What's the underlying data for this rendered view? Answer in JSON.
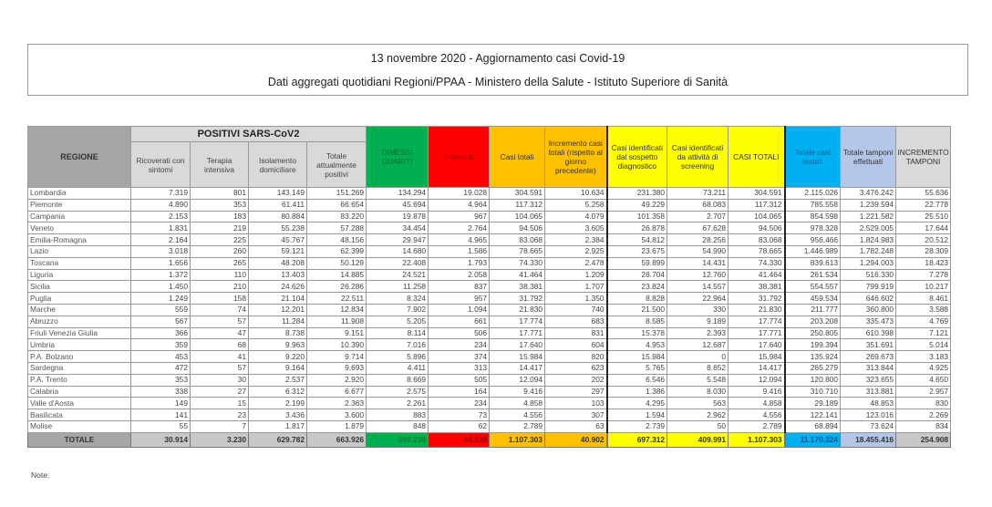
{
  "title": "13 novembre 2020 - Aggiornamento casi Covid-19",
  "subtitle": "Dati aggregati quotidiani Regioni/PPAA - Ministero della Salute - Istituto Superiore di Sanità",
  "headers": {
    "regione": "REGIONE",
    "positivi_group": "POSITIVI SARS-CoV2",
    "ricoverati": "Ricoverati con sintomi",
    "terapia": "Terapia intensiva",
    "isolamento": "Isolamento domiciliare",
    "totale_positivi": "Totale attualmente positivi",
    "dimessi": "DIMESSI GUARITI",
    "deceduti": "Deceduti",
    "casi_totali": "Casi totali",
    "incremento_casi": "Incremento casi totali (rispetto al giorno precedente)",
    "sospetto": "Casi identificati dal sospetto diagnostico",
    "screening": "Casi identificati da attività di screening",
    "casi_totali_caps": "CASI TOTALI",
    "testati": "Totale casi testati",
    "tamponi": "Totale tamponi effettuati",
    "incremento_tamponi": "INCREMENTO TAMPONI"
  },
  "rows": [
    [
      "Lombardia",
      "7.319",
      "801",
      "143.149",
      "151.269",
      "134.294",
      "19.028",
      "304.591",
      "10.634",
      "231.380",
      "73.211",
      "304.591",
      "2.115.026",
      "3.476.242",
      "55.636"
    ],
    [
      "Piemonte",
      "4.890",
      "353",
      "61.411",
      "66.654",
      "45.694",
      "4.964",
      "117.312",
      "5.258",
      "49.229",
      "68.083",
      "117.312",
      "785.558",
      "1.239.594",
      "22.778"
    ],
    [
      "Campania",
      "2.153",
      "183",
      "80.884",
      "83.220",
      "19.878",
      "967",
      "104.065",
      "4.079",
      "101.358",
      "2.707",
      "104.065",
      "854.598",
      "1.221.582",
      "25.510"
    ],
    [
      "Veneto",
      "1.831",
      "219",
      "55.238",
      "57.288",
      "34.454",
      "2.764",
      "94.506",
      "3.605",
      "26.878",
      "67.628",
      "94.506",
      "978.328",
      "2.529.005",
      "17.644"
    ],
    [
      "Emilia-Romagna",
      "2.164",
      "225",
      "45.767",
      "48.156",
      "29.947",
      "4.965",
      "83.068",
      "2.384",
      "54.812",
      "28.256",
      "83.068",
      "956.466",
      "1.824.983",
      "20.512"
    ],
    [
      "Lazio",
      "3.018",
      "260",
      "59.121",
      "62.399",
      "14.680",
      "1.586",
      "78.665",
      "2.925",
      "23.675",
      "54.990",
      "78.665",
      "1.446.989",
      "1.782.248",
      "28.309"
    ],
    [
      "Toscana",
      "1.656",
      "265",
      "48.208",
      "50.129",
      "22.408",
      "1.793",
      "74.330",
      "2.478",
      "59.899",
      "14.431",
      "74.330",
      "839.613",
      "1.294.003",
      "18.423"
    ],
    [
      "Liguria",
      "1.372",
      "110",
      "13.403",
      "14.885",
      "24.521",
      "2.058",
      "41.464",
      "1.209",
      "28.704",
      "12.760",
      "41.464",
      "261.534",
      "516.330",
      "7.278"
    ],
    [
      "Sicilia",
      "1.450",
      "210",
      "24.626",
      "26.286",
      "11.258",
      "837",
      "38.381",
      "1.707",
      "23.824",
      "14.557",
      "38.381",
      "554.557",
      "799.919",
      "10.217"
    ],
    [
      "Puglia",
      "1.249",
      "158",
      "21.104",
      "22.511",
      "8.324",
      "957",
      "31.792",
      "1.350",
      "8.828",
      "22.964",
      "31.792",
      "459.534",
      "646.602",
      "8.461"
    ],
    [
      "Marche",
      "559",
      "74",
      "12.201",
      "12.834",
      "7.902",
      "1.094",
      "21.830",
      "740",
      "21.500",
      "330",
      "21.830",
      "211.777",
      "360.800",
      "3.588"
    ],
    [
      "Abruzzo",
      "567",
      "57",
      "11.284",
      "11.908",
      "5.205",
      "661",
      "17.774",
      "683",
      "8.585",
      "9.189",
      "17.774",
      "203.208",
      "335.473",
      "4.769"
    ],
    [
      "Friuli Venezia Giulia",
      "366",
      "47",
      "8.738",
      "9.151",
      "8.114",
      "506",
      "17.771",
      "831",
      "15.378",
      "2.393",
      "17.771",
      "250.805",
      "610.398",
      "7.121"
    ],
    [
      "Umbria",
      "359",
      "68",
      "9.963",
      "10.390",
      "7.016",
      "234",
      "17.640",
      "604",
      "4.953",
      "12.687",
      "17.640",
      "199.394",
      "351.691",
      "5.014"
    ],
    [
      "P.A. Bolzano",
      "453",
      "41",
      "9.220",
      "9.714",
      "5.896",
      "374",
      "15.984",
      "820",
      "15.984",
      "0",
      "15.984",
      "135.924",
      "269.673",
      "3.183"
    ],
    [
      "Sardegna",
      "472",
      "57",
      "9.164",
      "9.693",
      "4.411",
      "313",
      "14.417",
      "623",
      "5.765",
      "8.652",
      "14.417",
      "265.279",
      "313.844",
      "4.925"
    ],
    [
      "P.A. Trento",
      "353",
      "30",
      "2.537",
      "2.920",
      "8.669",
      "505",
      "12.094",
      "202",
      "6.546",
      "5.548",
      "12.094",
      "120.800",
      "323.655",
      "4.650"
    ],
    [
      "Calabria",
      "338",
      "27",
      "6.312",
      "6.677",
      "2.575",
      "164",
      "9.416",
      "297",
      "1.386",
      "8.030",
      "9.416",
      "310.710",
      "313.881",
      "2.957"
    ],
    [
      "Valle d'Aosta",
      "149",
      "15",
      "2.199",
      "2.363",
      "2.261",
      "234",
      "4.858",
      "103",
      "4.295",
      "563",
      "4.858",
      "29.189",
      "48.853",
      "830"
    ],
    [
      "Basilicata",
      "141",
      "23",
      "3.436",
      "3.600",
      "883",
      "73",
      "4.556",
      "307",
      "1.594",
      "2.962",
      "4.556",
      "122.141",
      "123.016",
      "2.269"
    ],
    [
      "Molise",
      "55",
      "7",
      "1.817",
      "1.879",
      "848",
      "62",
      "2.789",
      "63",
      "2.739",
      "50",
      "2.789",
      "68.894",
      "73.624",
      "834"
    ]
  ],
  "totale": [
    "TOTALE",
    "30.914",
    "3.230",
    "629.782",
    "663.926",
    "399.238",
    "44.139",
    "1.107.303",
    "40.902",
    "697.312",
    "409.991",
    "1.107.303",
    "11.170.324",
    "18.455.416",
    "254.908"
  ],
  "note": "Note:",
  "colors": {
    "green": "#00b050",
    "red": "#ff0000",
    "orange": "#ffc000",
    "yellow": "#ffff00",
    "blue": "#00b0f0",
    "lightblue": "#b4c6e7",
    "grey": "#d9d9d9"
  }
}
